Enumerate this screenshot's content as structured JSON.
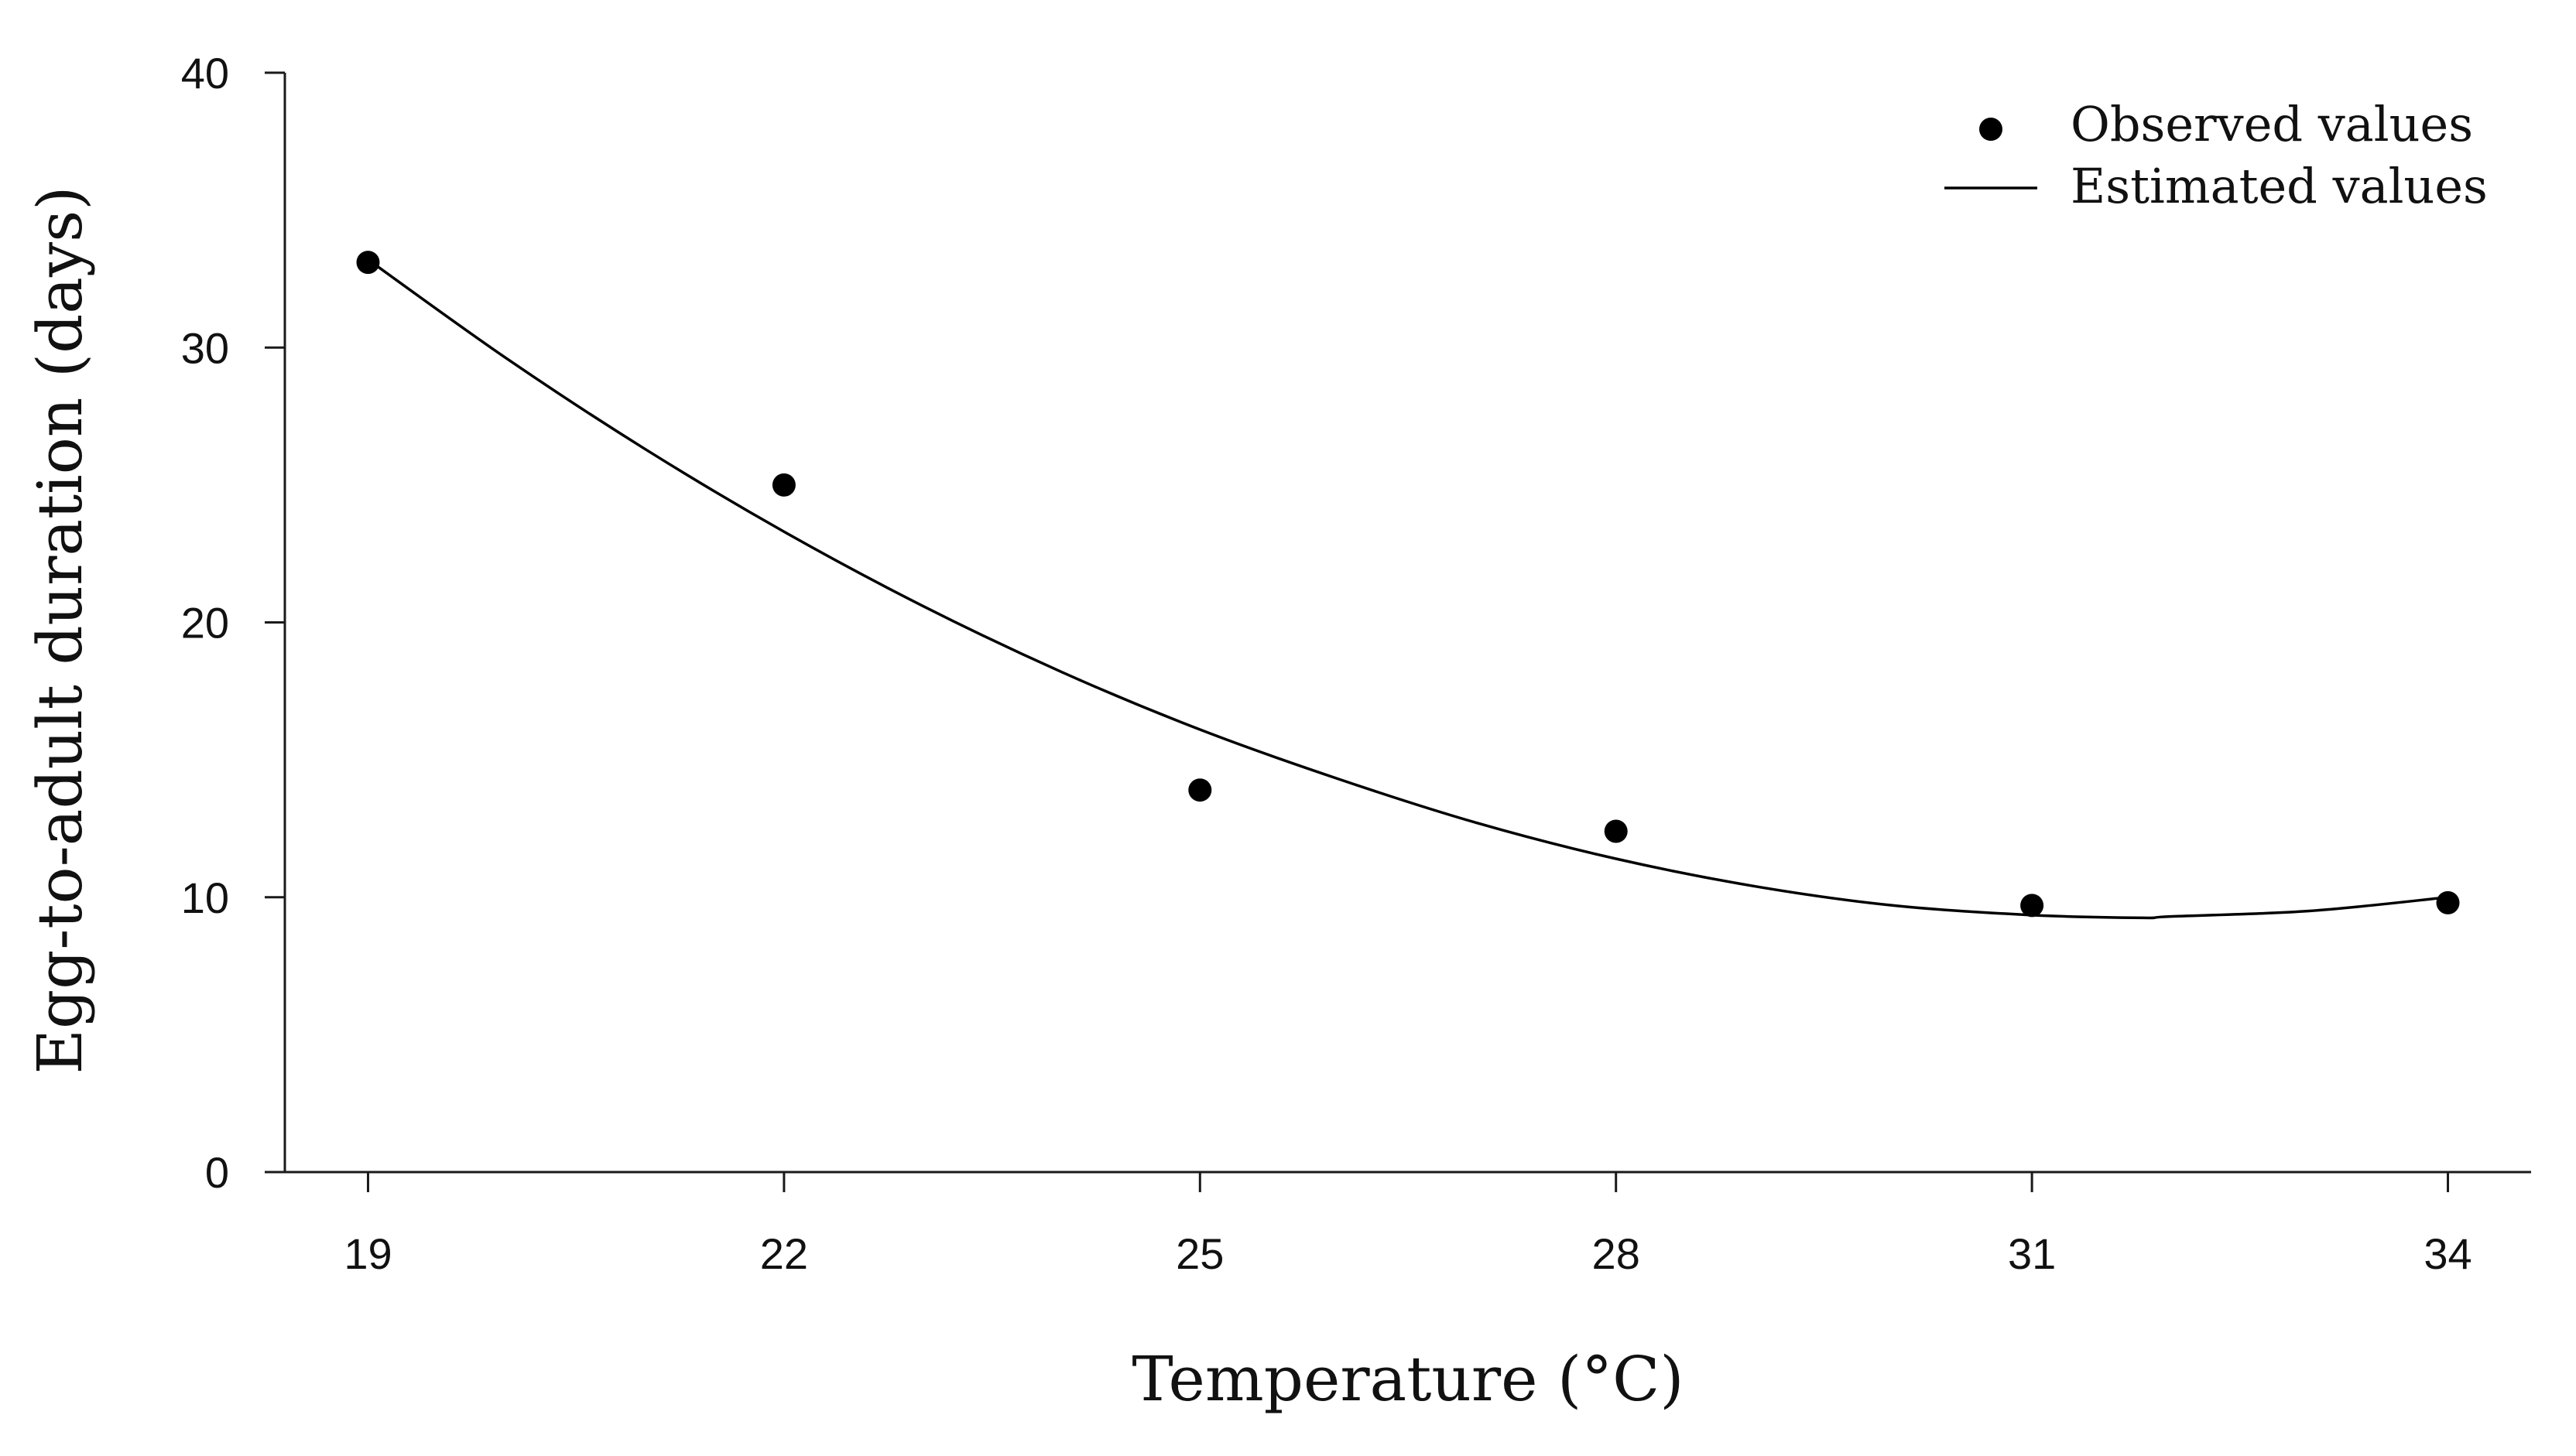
{
  "chart_data": {
    "type": "scatter",
    "title": "",
    "xlabel": "Temperature (°C)",
    "ylabel": "Egg-to-adult duration (days)",
    "x_ticks": [
      "19",
      "22",
      "25",
      "28",
      "31",
      "34"
    ],
    "y_ticks": [
      "0",
      "10",
      "20",
      "30",
      "40"
    ],
    "xlim": [
      18.4,
      34.6
    ],
    "ylim": [
      0,
      40
    ],
    "grid": false,
    "legend_position": "top-right",
    "series": [
      {
        "name": "Observed values",
        "kind": "points",
        "x": [
          19,
          22,
          25,
          28,
          31,
          34
        ],
        "y": [
          33.1,
          25.0,
          13.9,
          12.4,
          9.7,
          9.8
        ]
      },
      {
        "name": "Estimated values",
        "kind": "line",
        "x": [
          19,
          20,
          21,
          22,
          23,
          24,
          25,
          26,
          27,
          28,
          29,
          30,
          31,
          31.8,
          32,
          33,
          34
        ],
        "y": [
          33.2,
          29.6,
          26.3,
          23.3,
          20.6,
          18.2,
          16.1,
          14.3,
          12.7,
          11.4,
          10.4,
          9.7,
          9.35,
          9.25,
          9.3,
          9.5,
          10.0
        ]
      }
    ],
    "colors": {
      "axis": "#1a1a1a",
      "marker": "#000000",
      "line": "#000000"
    }
  }
}
